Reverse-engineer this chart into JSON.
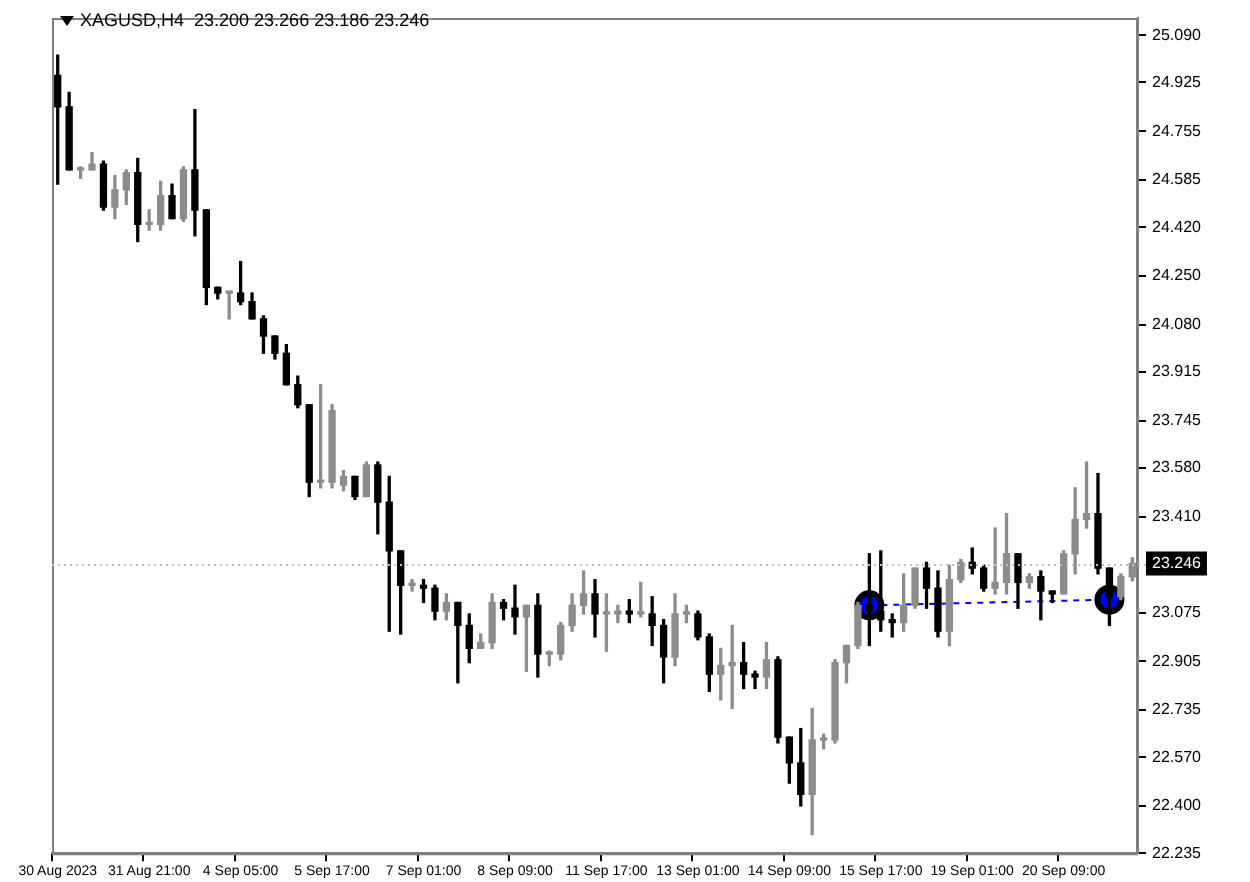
{
  "chart_data": {
    "type": "candlestick",
    "title": "XAGUSD,H4  23.200 23.266 23.186 23.246",
    "colors": [
      "#000000",
      "#000000",
      "#8c8c8c",
      "#8c8c8c",
      "#000000",
      "#8c8c8c",
      "#8c8c8c",
      "#000000",
      "#8c8c8c",
      "#8c8c8c",
      "#000000",
      "#8c8c8c",
      "#000000",
      "#000000",
      "#000000",
      "#8c8c8c",
      "#000000",
      "#000000",
      "#000000",
      "#000000",
      "#000000",
      "#000000",
      "#000000",
      "#8c8c8c",
      "#8c8c8c",
      "#8c8c8c",
      "#000000",
      "#8c8c8c",
      "#000000",
      "#000000",
      "#000000",
      "#8c8c8c",
      "#000000",
      "#000000",
      "#8c8c8c",
      "#000000",
      "#000000",
      "#8c8c8c",
      "#8c8c8c",
      "#000000",
      "#000000",
      "#8c8c8c",
      "#000000",
      "#8c8c8c",
      "#8c8c8c",
      "#8c8c8c",
      "#8c8c8c",
      "#000000",
      "#8c8c8c",
      "#8c8c8c",
      "#000000",
      "#8c8c8c",
      "#000000",
      "#000000",
      "#8c8c8c",
      "#8c8c8c",
      "#000000",
      "#000000",
      "#8c8c8c",
      "#8c8c8c",
      "#000000",
      "#000000",
      "#8c8c8c",
      "#000000",
      "#000000",
      "#000000",
      "#8c8c8c",
      "#8c8c8c",
      "#8c8c8c",
      "#8c8c8c",
      "#8c8c8c",
      "#000000",
      "#000000",
      "#000000",
      "#8c8c8c",
      "#8c8c8c",
      "#000000",
      "#000000",
      "#8c8c8c",
      "#8c8c8c",
      "#000000",
      "#000000",
      "#8c8c8c",
      "#8c8c8c",
      "#000000",
      "#8c8c8c",
      "#000000",
      "#000000",
      "#8c8c8c",
      "#8c8c8c",
      "#8c8c8c",
      "#000000",
      "#000000",
      "#8c8c8c",
      "#8c8c8c"
    ],
    "categories": [
      "30 Aug 2023",
      null,
      null,
      null,
      null,
      null,
      null,
      null,
      "31 Aug 21:00",
      null,
      null,
      null,
      null,
      null,
      null,
      null,
      "4 Sep 05:00",
      null,
      null,
      null,
      null,
      null,
      null,
      null,
      "5 Sep 17:00",
      null,
      null,
      null,
      null,
      null,
      null,
      null,
      "7 Sep 01:00",
      null,
      null,
      null,
      null,
      null,
      null,
      null,
      "8 Sep 09:00",
      null,
      null,
      null,
      null,
      null,
      null,
      null,
      "11 Sep 17:00",
      null,
      null,
      null,
      null,
      null,
      null,
      null,
      "13 Sep 01:00",
      null,
      null,
      null,
      null,
      null,
      null,
      null,
      "14 Sep 09:00",
      null,
      null,
      null,
      null,
      null,
      null,
      null,
      "15 Sep 17:00",
      null,
      null,
      null,
      null,
      null,
      null,
      null,
      "19 Sep 01:00",
      null,
      null,
      null,
      null,
      null,
      null,
      null,
      "20 Sep 09:00",
      null,
      null,
      null,
      null,
      null,
      null
    ],
    "ohlc": [
      [
        24.95,
        25.02,
        24.57,
        24.84
      ],
      [
        24.84,
        24.89,
        24.62,
        24.62
      ],
      [
        24.62,
        24.63,
        24.59,
        24.62
      ],
      [
        24.62,
        24.68,
        24.62,
        24.64
      ],
      [
        24.64,
        24.65,
        24.48,
        24.49
      ],
      [
        24.49,
        24.6,
        24.45,
        24.55
      ],
      [
        24.55,
        24.62,
        24.5,
        24.61
      ],
      [
        24.61,
        24.66,
        24.37,
        24.43
      ],
      [
        24.43,
        24.48,
        24.41,
        24.43
      ],
      [
        24.43,
        24.58,
        24.41,
        24.53
      ],
      [
        24.53,
        24.57,
        24.45,
        24.45
      ],
      [
        24.45,
        24.63,
        24.44,
        24.62
      ],
      [
        24.62,
        24.83,
        24.39,
        24.48
      ],
      [
        24.48,
        24.48,
        24.15,
        24.21
      ],
      [
        24.21,
        24.21,
        24.17,
        24.19
      ],
      [
        24.19,
        24.19,
        24.1,
        24.19
      ],
      [
        24.19,
        24.3,
        24.15,
        24.16
      ],
      [
        24.16,
        24.19,
        24.1,
        24.1
      ],
      [
        24.1,
        24.11,
        23.98,
        24.04
      ],
      [
        24.04,
        24.04,
        23.96,
        23.98
      ],
      [
        23.98,
        24.01,
        23.87,
        23.87
      ],
      [
        23.87,
        23.9,
        23.79,
        23.8
      ],
      [
        23.8,
        23.8,
        23.48,
        23.53
      ],
      [
        23.53,
        23.87,
        23.51,
        23.53
      ],
      [
        23.53,
        23.8,
        23.51,
        23.78
      ],
      [
        23.52,
        23.57,
        23.5,
        23.55
      ],
      [
        23.55,
        23.55,
        23.47,
        23.48
      ],
      [
        23.48,
        23.6,
        23.48,
        23.59
      ],
      [
        23.59,
        23.6,
        23.35,
        23.46
      ],
      [
        23.46,
        23.55,
        23.01,
        23.29
      ],
      [
        23.29,
        23.29,
        23.0,
        23.17
      ],
      [
        23.17,
        23.19,
        23.15,
        23.17
      ],
      [
        23.17,
        23.19,
        23.11,
        23.16
      ],
      [
        23.16,
        23.17,
        23.05,
        23.08
      ],
      [
        23.08,
        23.14,
        23.05,
        23.11
      ],
      [
        23.11,
        23.11,
        22.83,
        23.03
      ],
      [
        23.03,
        23.07,
        22.9,
        22.95
      ],
      [
        22.95,
        23.0,
        22.95,
        22.97
      ],
      [
        22.97,
        23.14,
        22.95,
        23.11
      ],
      [
        23.11,
        23.12,
        23.05,
        23.09
      ],
      [
        23.09,
        23.17,
        23.0,
        23.06
      ],
      [
        23.06,
        23.1,
        22.87,
        23.1
      ],
      [
        23.1,
        23.14,
        22.85,
        22.93
      ],
      [
        22.93,
        22.94,
        22.89,
        22.93
      ],
      [
        22.93,
        23.04,
        22.91,
        23.03
      ],
      [
        23.03,
        23.14,
        23.01,
        23.1
      ],
      [
        23.1,
        23.22,
        23.07,
        23.14
      ],
      [
        23.14,
        23.19,
        22.99,
        23.07
      ],
      [
        23.07,
        23.14,
        22.94,
        23.07
      ],
      [
        23.07,
        23.1,
        23.04,
        23.08
      ],
      [
        23.08,
        23.12,
        23.04,
        23.07
      ],
      [
        23.07,
        23.18,
        23.06,
        23.07
      ],
      [
        23.07,
        23.13,
        22.96,
        23.03
      ],
      [
        23.03,
        23.05,
        22.83,
        22.92
      ],
      [
        22.92,
        23.14,
        22.89,
        23.07
      ],
      [
        23.07,
        23.1,
        23.04,
        23.07
      ],
      [
        23.07,
        23.08,
        22.98,
        22.99
      ],
      [
        22.99,
        23.0,
        22.8,
        22.86
      ],
      [
        22.86,
        22.95,
        22.77,
        22.89
      ],
      [
        22.89,
        23.03,
        22.74,
        22.9
      ],
      [
        22.9,
        22.97,
        22.81,
        22.86
      ],
      [
        22.86,
        22.87,
        22.81,
        22.85
      ],
      [
        22.85,
        22.97,
        22.81,
        22.91
      ],
      [
        22.91,
        22.92,
        22.62,
        22.64
      ],
      [
        22.64,
        22.64,
        22.48,
        22.55
      ],
      [
        22.55,
        22.67,
        22.4,
        22.44
      ],
      [
        22.44,
        22.74,
        22.3,
        22.63
      ],
      [
        22.63,
        22.65,
        22.6,
        22.63
      ],
      [
        22.63,
        22.91,
        22.62,
        22.9
      ],
      [
        22.9,
        22.96,
        22.83,
        22.96
      ],
      [
        22.96,
        23.11,
        22.95,
        23.1
      ],
      [
        23.1,
        23.28,
        22.96,
        23.08
      ],
      [
        23.08,
        23.29,
        23.01,
        23.05
      ],
      [
        23.05,
        23.07,
        22.99,
        23.04
      ],
      [
        23.04,
        23.21,
        23.01,
        23.1
      ],
      [
        23.1,
        23.23,
        23.09,
        23.23
      ],
      [
        23.23,
        23.25,
        23.09,
        23.16
      ],
      [
        23.16,
        23.22,
        22.99,
        23.01
      ],
      [
        23.01,
        23.24,
        22.96,
        23.19
      ],
      [
        23.19,
        23.26,
        23.18,
        23.25
      ],
      [
        23.25,
        23.3,
        23.21,
        23.23
      ],
      [
        23.23,
        23.24,
        23.15,
        23.16
      ],
      [
        23.16,
        23.37,
        23.14,
        23.18
      ],
      [
        23.18,
        23.42,
        23.14,
        23.28
      ],
      [
        23.28,
        23.28,
        23.09,
        23.18
      ],
      [
        23.18,
        23.21,
        23.16,
        23.2
      ],
      [
        23.2,
        23.22,
        23.05,
        23.15
      ],
      [
        23.15,
        23.15,
        23.11,
        23.14
      ],
      [
        23.14,
        23.29,
        23.14,
        23.28
      ],
      [
        23.28,
        23.51,
        23.21,
        23.4
      ],
      [
        23.4,
        23.6,
        23.37,
        23.42
      ],
      [
        23.42,
        23.56,
        23.21,
        23.23
      ],
      [
        23.23,
        23.23,
        23.03,
        23.13
      ],
      [
        23.13,
        23.21,
        23.12,
        23.2
      ],
      [
        23.2,
        23.266,
        23.186,
        23.246
      ]
    ],
    "series": [
      {
        "type": "line",
        "color": "#0000ff",
        "line_style": "dashed",
        "marker": "circle",
        "values": [
          null,
          null,
          null,
          null,
          null,
          null,
          null,
          null,
          null,
          null,
          null,
          null,
          null,
          null,
          null,
          null,
          null,
          null,
          null,
          null,
          null,
          null,
          null,
          null,
          null,
          null,
          null,
          null,
          null,
          null,
          null,
          null,
          null,
          null,
          null,
          null,
          null,
          null,
          null,
          null,
          null,
          null,
          null,
          null,
          null,
          null,
          null,
          null,
          null,
          null,
          null,
          null,
          null,
          null,
          null,
          null,
          null,
          null,
          null,
          null,
          null,
          null,
          null,
          null,
          null,
          null,
          null,
          null,
          null,
          null,
          null,
          23.1,
          null,
          null,
          null,
          null,
          null,
          null,
          null,
          null,
          null,
          null,
          null,
          null,
          null,
          null,
          null,
          null,
          null,
          null,
          null,
          null,
          23.12,
          null,
          null
        ]
      }
    ],
    "ref_lines": [
      {
        "axis": "y",
        "value": 23.246,
        "label": "23.246"
      }
    ],
    "ylim": [
      22.235,
      25.15
    ],
    "yticks": [
      {
        "value": 25.09,
        "label": "25.090"
      },
      24.925,
      24.755,
      24.585,
      {
        "value": 24.42,
        "label": "24.420"
      },
      {
        "value": 24.25,
        "label": "24.250"
      },
      {
        "value": 24.08,
        "label": "24.080"
      },
      23.915,
      23.745,
      {
        "value": 23.58,
        "label": "23.580"
      },
      {
        "value": 23.41,
        "label": "23.410"
      },
      23.075,
      22.905,
      22.735,
      {
        "value": 22.57,
        "label": "22.570"
      },
      {
        "value": 22.4,
        "label": "22.400"
      },
      22.235
    ]
  }
}
